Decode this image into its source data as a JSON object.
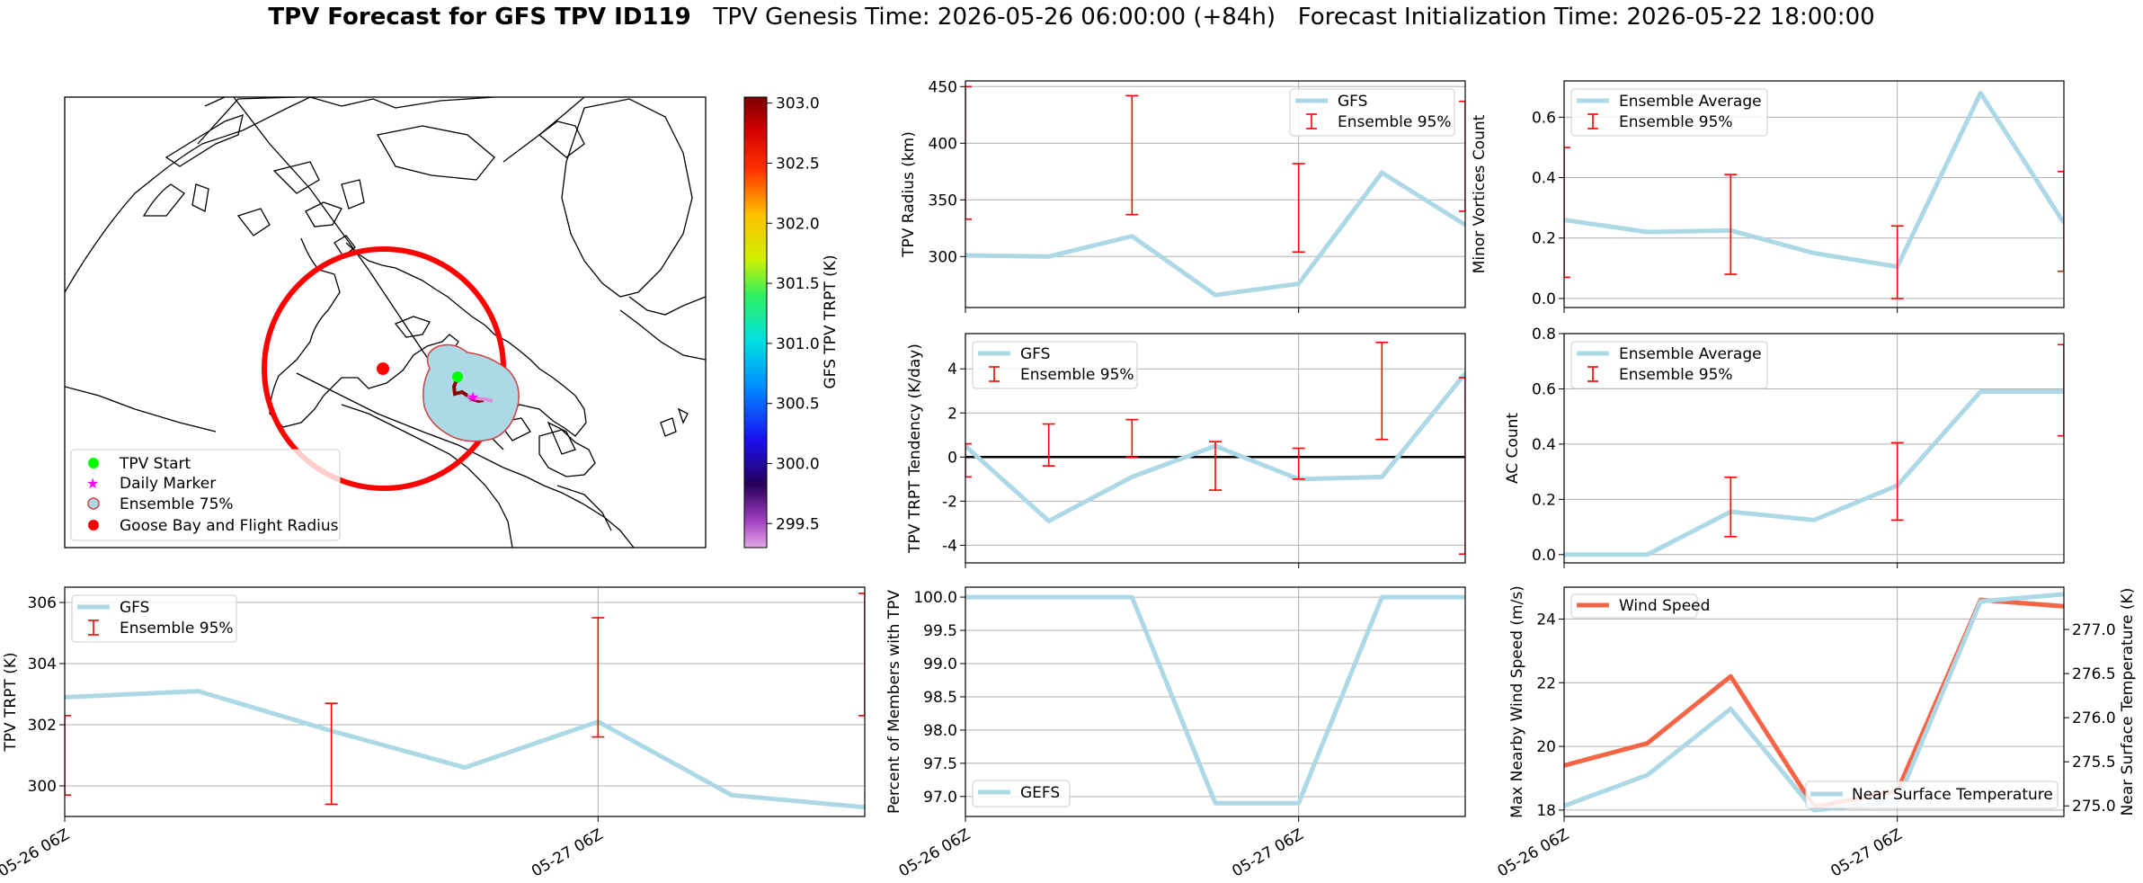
{
  "figure": {
    "title_bold": "TPV Forecast for GFS TPV ID119",
    "title_genesis": "TPV Genesis Time: 2026-05-26 06:00:00 (+84h)",
    "title_init": "Forecast Initialization Time: 2026-05-22 18:00:00"
  },
  "colors": {
    "series": "#add8e6",
    "error": "#ff0000",
    "wind": "#f46445",
    "temp_axis": "#4169e1",
    "zero_line": "#000000",
    "grid": "#b0b0b0"
  },
  "map_panel": {
    "colorbar_label": "GFS TPV TRPT (K)",
    "colorbar_ticks": [
      299.5,
      300.0,
      300.5,
      301.0,
      301.5,
      302.0,
      302.5,
      303.0
    ],
    "colorbar_range": [
      299.3,
      303.05
    ],
    "legend": [
      "TPV Start",
      "Daily Marker",
      "Ensemble 75%",
      "Goose Bay and Flight Radius"
    ]
  },
  "chart_data": [
    {
      "id": "radius",
      "type": "line",
      "ylabel": "TPV Radius (km)",
      "ylim": [
        255,
        455
      ],
      "yticks": [
        300,
        350,
        400,
        450
      ],
      "xlim": [
        0,
        6
      ],
      "xlabels": [],
      "series": [
        {
          "name": "GFS",
          "x": [
            0,
            1,
            2,
            3,
            4,
            5,
            6
          ],
          "y": [
            301,
            300,
            318,
            266,
            276,
            374,
            328
          ]
        }
      ],
      "errorbars": {
        "name": "Ensemble 95%",
        "x": [
          0,
          2,
          4,
          6
        ],
        "lo": [
          333,
          337,
          304,
          340
        ],
        "hi": [
          450,
          442,
          382,
          437
        ]
      },
      "legend": "top-right",
      "grid": true
    },
    {
      "id": "minor",
      "type": "line",
      "ylabel": "Minor Vortices Count",
      "ylim": [
        -0.03,
        0.72
      ],
      "yticks": [
        0.0,
        0.2,
        0.4,
        0.6
      ],
      "xlim": [
        0,
        6
      ],
      "xlabels": [],
      "series": [
        {
          "name": "Ensemble Average",
          "x": [
            0,
            1,
            2,
            3,
            4,
            5,
            6
          ],
          "y": [
            0.26,
            0.22,
            0.225,
            0.15,
            0.105,
            0.68,
            0.25
          ]
        }
      ],
      "errorbars": {
        "name": "Ensemble 95%",
        "x": [
          0,
          2,
          4,
          6
        ],
        "lo": [
          0.07,
          0.08,
          0.0,
          0.09
        ],
        "hi": [
          0.5,
          0.41,
          0.24,
          0.42
        ]
      },
      "legend": "top-left",
      "grid": true
    },
    {
      "id": "tendency",
      "type": "line",
      "ylabel": "TPV TRPT Tendency (K/day)",
      "ylim": [
        -4.8,
        5.6
      ],
      "yticks": [
        -4,
        -2,
        0,
        2,
        4
      ],
      "xlim": [
        0,
        6
      ],
      "xlabels": [],
      "zero_line": true,
      "series": [
        {
          "name": "GFS",
          "x": [
            0,
            1,
            2,
            3,
            4,
            5,
            6
          ],
          "y": [
            0.5,
            -2.9,
            -0.9,
            0.5,
            -1.0,
            -0.9,
            3.8
          ]
        }
      ],
      "errorbars": {
        "name": "Ensemble 95%",
        "x": [
          0,
          1,
          2,
          3,
          4,
          5,
          6
        ],
        "lo": [
          -0.9,
          -0.4,
          0.0,
          -1.5,
          -1.0,
          0.8,
          -4.4
        ],
        "hi": [
          0.6,
          1.5,
          1.7,
          0.7,
          0.4,
          5.2,
          3.6
        ]
      },
      "legend": "top-left",
      "grid": true
    },
    {
      "id": "ac",
      "type": "line",
      "ylabel": "AC Count",
      "ylim": [
        -0.03,
        0.8
      ],
      "yticks": [
        0.0,
        0.2,
        0.4,
        0.6,
        0.8
      ],
      "xlim": [
        0,
        6
      ],
      "xlabels": [],
      "series": [
        {
          "name": "Ensemble Average",
          "x": [
            0,
            1,
            2,
            3,
            4,
            5,
            6
          ],
          "y": [
            0.0,
            0.0,
            0.155,
            0.125,
            0.25,
            0.59,
            0.59
          ]
        }
      ],
      "errorbars": {
        "name": "Ensemble 95%",
        "x": [
          2,
          4,
          6
        ],
        "lo": [
          0.065,
          0.125,
          0.43
        ],
        "hi": [
          0.28,
          0.405,
          0.76
        ]
      },
      "legend": "top-left",
      "grid": true
    },
    {
      "id": "trpt",
      "type": "line",
      "ylabel": "TPV TRPT (K)",
      "ylim": [
        299.0,
        306.5
      ],
      "yticks": [
        300,
        302,
        304,
        306
      ],
      "xlim": [
        0,
        6
      ],
      "xlabels": [
        {
          "x": 0,
          "label": "05-26 06Z"
        },
        {
          "x": 4,
          "label": "05-27 06Z"
        }
      ],
      "series": [
        {
          "name": "GFS",
          "x": [
            0,
            1,
            2,
            3,
            4,
            5,
            6
          ],
          "y": [
            302.9,
            303.1,
            301.8,
            300.6,
            302.1,
            299.7,
            299.3
          ]
        }
      ],
      "errorbars": {
        "name": "Ensemble 95%",
        "x": [
          0,
          2,
          4,
          6
        ],
        "lo": [
          299.7,
          299.4,
          301.6,
          302.3
        ],
        "hi": [
          302.3,
          302.7,
          305.5,
          306.3
        ]
      },
      "legend": "top-left",
      "grid": true
    },
    {
      "id": "percent",
      "type": "line",
      "ylabel": "Percent of Members with TPV",
      "ylim": [
        96.7,
        100.15
      ],
      "yticks": [
        97.0,
        97.5,
        98.0,
        98.5,
        99.0,
        99.5,
        100.0
      ],
      "xlim": [
        0,
        6
      ],
      "xlabels": [
        {
          "x": 0,
          "label": "05-26 06Z"
        },
        {
          "x": 4,
          "label": "05-27 06Z"
        }
      ],
      "series": [
        {
          "name": "GEFS",
          "x": [
            0,
            1,
            2,
            3,
            4,
            5,
            6
          ],
          "y": [
            100,
            100,
            100,
            96.9,
            96.9,
            100,
            100
          ]
        }
      ],
      "legend": "bottom-left",
      "grid": true
    },
    {
      "id": "wind",
      "type": "line",
      "ylabel": "Max Nearby Wind Speed (m/s)",
      "ylim": [
        17.8,
        25.0
      ],
      "yticks": [
        18,
        20,
        22,
        24
      ],
      "ylabel_right": "Near Surface Temperature (K)",
      "ylim_right": [
        274.88,
        277.48
      ],
      "yticks_right": [
        275.0,
        275.5,
        276.0,
        276.5,
        277.0
      ],
      "xlim": [
        0,
        6
      ],
      "xlabels": [
        {
          "x": 0,
          "label": "05-26 06Z"
        },
        {
          "x": 4,
          "label": "05-27 06Z"
        }
      ],
      "series": [
        {
          "name": "Wind Speed",
          "axis": "left",
          "x": [
            0,
            1,
            2,
            3,
            4,
            5,
            6
          ],
          "y": [
            19.4,
            20.1,
            22.2,
            18.1,
            18.6,
            24.6,
            24.4
          ]
        },
        {
          "name": "Near Surface Temperature",
          "axis": "right",
          "x": [
            0,
            1,
            2,
            3,
            4,
            5,
            6
          ],
          "y": [
            275.0,
            275.35,
            276.1,
            274.95,
            275.05,
            277.32,
            277.4
          ]
        }
      ],
      "legend": "top-left / bottom-right",
      "grid": true
    }
  ]
}
